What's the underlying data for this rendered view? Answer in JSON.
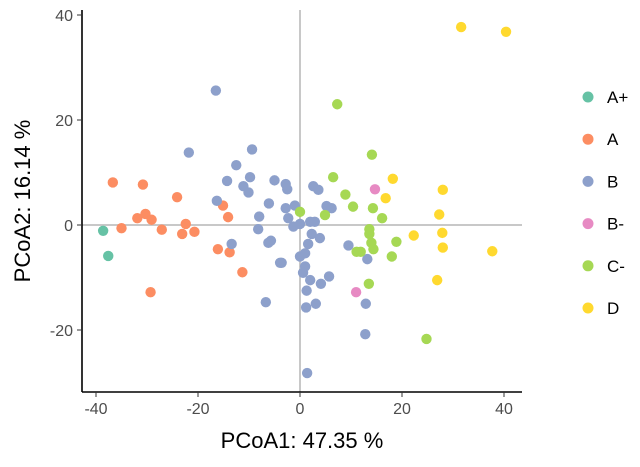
{
  "chart_data": {
    "type": "scatter",
    "title": "",
    "xlabel": "PCoA1:  47.35 %",
    "ylabel": "PCoA2:  16.14 %",
    "xlim": [
      -42,
      43
    ],
    "ylim": [
      -31,
      41
    ],
    "xticks": [
      -40,
      -20,
      0,
      20,
      40
    ],
    "yticks": [
      -20,
      0,
      20,
      40
    ],
    "grid": false,
    "reference_lines": {
      "x": 0,
      "y": 0
    },
    "legend_position": "right",
    "series": [
      {
        "name": "A+",
        "color": "#66c2a5",
        "points": [
          [
            -38.6,
            -1.1
          ],
          [
            -37.6,
            -5.9
          ]
        ]
      },
      {
        "name": "A",
        "color": "#fc8d62",
        "points": [
          [
            -36.7,
            8.1
          ],
          [
            -30.8,
            7.7
          ],
          [
            -24.1,
            5.3
          ],
          [
            -35.0,
            -0.6
          ],
          [
            -31.9,
            1.3
          ],
          [
            -30.3,
            2.1
          ],
          [
            -29.1,
            1.0
          ],
          [
            -27.1,
            -0.9
          ],
          [
            -22.4,
            0.2
          ],
          [
            -23.1,
            -1.7
          ],
          [
            -20.7,
            -1.3
          ],
          [
            -15.1,
            3.7
          ],
          [
            -14.1,
            1.5
          ],
          [
            -16.1,
            -4.6
          ],
          [
            -13.8,
            -5.2
          ],
          [
            -11.3,
            -9.0
          ],
          [
            -29.3,
            -12.8
          ]
        ]
      },
      {
        "name": "B",
        "color": "#8da0cb",
        "points": [
          [
            -16.5,
            25.6
          ],
          [
            -21.8,
            13.8
          ],
          [
            -9.4,
            14.4
          ],
          [
            -12.5,
            11.4
          ],
          [
            -14.3,
            8.4
          ],
          [
            -9.8,
            9.1
          ],
          [
            -11.1,
            7.4
          ],
          [
            -10.1,
            6.2
          ],
          [
            -5.0,
            8.5
          ],
          [
            -2.8,
            7.8
          ],
          [
            -2.5,
            6.8
          ],
          [
            -16.3,
            4.6
          ],
          [
            -6.1,
            4.1
          ],
          [
            -8.0,
            1.6
          ],
          [
            -8.2,
            -0.8
          ],
          [
            -2.8,
            3.2
          ],
          [
            -1.0,
            3.7
          ],
          [
            -2.3,
            1.3
          ],
          [
            -1.3,
            -0.3
          ],
          [
            0.0,
            0.2
          ],
          [
            -13.4,
            -3.6
          ],
          [
            -6.2,
            -3.4
          ],
          [
            -5.7,
            -3.0
          ],
          [
            -3.9,
            -7.2
          ],
          [
            -6.7,
            -14.7
          ],
          [
            2.6,
            7.4
          ],
          [
            3.6,
            6.7
          ],
          [
            5.2,
            3.6
          ],
          [
            6.2,
            3.2
          ],
          [
            2.0,
            0.6
          ],
          [
            2.9,
            0.6
          ],
          [
            2.3,
            -1.7
          ],
          [
            3.9,
            -2.5
          ],
          [
            1.6,
            -3.6
          ],
          [
            1.0,
            -5.4
          ],
          [
            0.0,
            -6.0
          ],
          [
            1.0,
            -7.9
          ],
          [
            0.6,
            -9.1
          ],
          [
            2.0,
            -10.5
          ],
          [
            5.7,
            -9.8
          ],
          [
            4.1,
            -11.2
          ],
          [
            1.3,
            -12.5
          ],
          [
            1.2,
            -15.7
          ],
          [
            3.1,
            -15.0
          ],
          [
            -3.6,
            -7.2
          ],
          [
            9.5,
            -3.9
          ],
          [
            13.2,
            -6.5
          ],
          [
            12.9,
            -15.0
          ],
          [
            12.8,
            -20.8
          ],
          [
            1.4,
            -28.2
          ]
        ]
      },
      {
        "name": "B-",
        "color": "#e78ac3",
        "points": [
          [
            14.7,
            6.8
          ],
          [
            11.0,
            -12.8
          ]
        ]
      },
      {
        "name": "C-",
        "color": "#a6d854",
        "points": [
          [
            7.3,
            23.0
          ],
          [
            14.1,
            13.4
          ],
          [
            6.5,
            9.1
          ],
          [
            8.9,
            5.8
          ],
          [
            10.4,
            3.5
          ],
          [
            14.3,
            3.2
          ],
          [
            16.1,
            1.3
          ],
          [
            0.0,
            2.5
          ],
          [
            4.9,
            1.9
          ],
          [
            13.6,
            -0.8
          ],
          [
            13.6,
            -1.7
          ],
          [
            14.0,
            -3.4
          ],
          [
            14.4,
            -4.6
          ],
          [
            18.9,
            -3.2
          ],
          [
            11.1,
            -5.1
          ],
          [
            11.9,
            -5.1
          ],
          [
            18.0,
            -6.0
          ],
          [
            13.5,
            -11.2
          ],
          [
            24.8,
            -21.7
          ]
        ]
      },
      {
        "name": "D",
        "color": "#ffd92f",
        "points": [
          [
            31.6,
            37.7
          ],
          [
            40.4,
            36.8
          ],
          [
            18.2,
            8.8
          ],
          [
            16.8,
            5.1
          ],
          [
            28.0,
            6.7
          ],
          [
            27.3,
            2.0
          ],
          [
            27.9,
            -1.5
          ],
          [
            28.0,
            -4.3
          ],
          [
            22.3,
            -2.0
          ],
          [
            37.7,
            -5.0
          ],
          [
            26.9,
            -10.5
          ]
        ]
      }
    ]
  }
}
